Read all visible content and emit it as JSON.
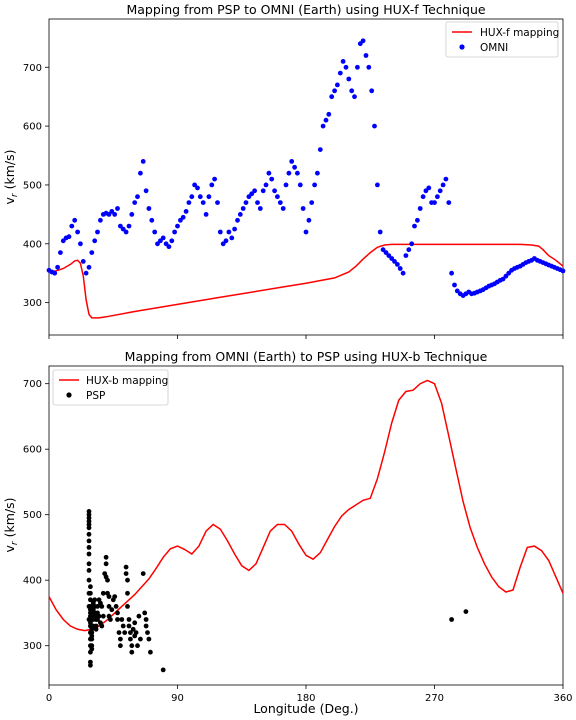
{
  "chart_data": [
    {
      "type": "scatter",
      "title": "Mapping from PSP to OMNI (Earth) using HUX-f Technique",
      "xlabel": "",
      "ylabel": "v_r (km/s)",
      "xlim": [
        0,
        360
      ],
      "ylim": [
        245,
        782
      ],
      "yticks": [
        300,
        400,
        500,
        600,
        700
      ],
      "xticks": [
        0,
        90,
        180,
        270,
        360
      ],
      "show_xtick_labels": false,
      "grid": false,
      "legend_position": "upper right",
      "series": [
        {
          "name": "HUX-f mapping",
          "kind": "line",
          "color": "#ff0000",
          "x": [
            0,
            5,
            10,
            15,
            18,
            20,
            22,
            24,
            26,
            28,
            30,
            35,
            40,
            60,
            80,
            100,
            120,
            140,
            160,
            180,
            200,
            210,
            215,
            220,
            225,
            230,
            235,
            240,
            245,
            250,
            270,
            300,
            320,
            330,
            338,
            343,
            346,
            350,
            355,
            360
          ],
          "y": [
            352,
            354,
            358,
            365,
            371,
            372,
            367,
            345,
            305,
            280,
            274,
            274,
            276,
            285,
            293,
            301,
            309,
            317,
            325,
            333,
            342,
            352,
            362,
            374,
            385,
            394,
            398,
            399,
            399,
            399,
            399,
            399,
            399,
            399,
            398,
            396,
            390,
            380,
            372,
            362
          ]
        },
        {
          "name": "OMNI",
          "kind": "scatter",
          "color": "#0000ff",
          "x": [
            0,
            2,
            4,
            6,
            8,
            10,
            12,
            14,
            16,
            18,
            20,
            22,
            24,
            26,
            28,
            30,
            32,
            34,
            36,
            38,
            40,
            42,
            44,
            46,
            48,
            50,
            52,
            54,
            56,
            58,
            60,
            62,
            64,
            66,
            68,
            70,
            72,
            74,
            76,
            78,
            80,
            82,
            84,
            86,
            88,
            90,
            92,
            94,
            96,
            98,
            100,
            102,
            104,
            106,
            108,
            110,
            112,
            114,
            116,
            118,
            120,
            122,
            124,
            126,
            128,
            130,
            132,
            134,
            136,
            138,
            140,
            142,
            144,
            146,
            148,
            150,
            152,
            154,
            156,
            158,
            160,
            162,
            164,
            166,
            168,
            170,
            172,
            174,
            176,
            178,
            180,
            182,
            184,
            186,
            188,
            190,
            192,
            194,
            196,
            198,
            200,
            202,
            204,
            206,
            208,
            210,
            212,
            214,
            216,
            218,
            220,
            222,
            224,
            226,
            228,
            230,
            232,
            234,
            236,
            238,
            240,
            242,
            244,
            246,
            248,
            250,
            252,
            254,
            256,
            258,
            260,
            262,
            264,
            266,
            268,
            270,
            272,
            274,
            276,
            278,
            280,
            282,
            284,
            286,
            288,
            290,
            292,
            294,
            296,
            298,
            300,
            302,
            304,
            306,
            308,
            310,
            312,
            314,
            316,
            318,
            320,
            322,
            324,
            326,
            328,
            330,
            332,
            334,
            336,
            338,
            340,
            342,
            344,
            346,
            348,
            350,
            352,
            354,
            356,
            358,
            360
          ],
          "y": [
            355,
            352,
            350,
            360,
            385,
            405,
            410,
            412,
            430,
            440,
            420,
            400,
            370,
            350,
            360,
            385,
            405,
            420,
            440,
            450,
            452,
            450,
            455,
            450,
            460,
            430,
            425,
            420,
            430,
            450,
            470,
            480,
            520,
            540,
            490,
            460,
            440,
            420,
            400,
            405,
            410,
            400,
            395,
            405,
            420,
            430,
            440,
            445,
            455,
            470,
            480,
            500,
            495,
            480,
            470,
            450,
            480,
            500,
            510,
            470,
            420,
            400,
            405,
            420,
            410,
            425,
            440,
            450,
            460,
            470,
            480,
            485,
            490,
            470,
            460,
            490,
            500,
            520,
            510,
            490,
            480,
            470,
            460,
            500,
            520,
            540,
            530,
            520,
            500,
            460,
            420,
            440,
            470,
            500,
            520,
            560,
            600,
            610,
            620,
            650,
            660,
            670,
            690,
            710,
            700,
            680,
            660,
            650,
            700,
            740,
            745,
            720,
            700,
            660,
            600,
            500,
            420,
            390,
            385,
            380,
            375,
            370,
            365,
            358,
            350,
            380,
            390,
            400,
            430,
            440,
            460,
            480,
            490,
            495,
            470,
            470,
            480,
            490,
            500,
            510,
            470,
            350,
            330,
            320,
            315,
            312,
            315,
            318,
            315,
            316,
            318,
            320,
            322,
            325,
            328,
            330,
            332,
            335,
            338,
            340,
            345,
            350,
            355,
            358,
            360,
            362,
            365,
            368,
            370,
            372,
            375,
            372,
            370,
            368,
            366,
            364,
            362,
            360,
            358,
            356,
            354
          ]
        }
      ]
    },
    {
      "type": "scatter",
      "title": "Mapping from OMNI (Earth) to PSP using HUX-b Technique",
      "xlabel": "Longitude (Deg.)",
      "ylabel": "v_r (km/s)",
      "xlim": [
        0,
        360
      ],
      "ylim": [
        240,
        727
      ],
      "yticks": [
        300,
        400,
        500,
        600,
        700
      ],
      "xticks": [
        0,
        90,
        180,
        270,
        360
      ],
      "show_xtick_labels": true,
      "grid": false,
      "legend_position": "upper left",
      "series": [
        {
          "name": "HUX-b mapping",
          "kind": "line",
          "color": "#ff0000",
          "x": [
            0,
            5,
            10,
            15,
            20,
            25,
            30,
            35,
            40,
            45,
            50,
            55,
            60,
            65,
            70,
            75,
            80,
            85,
            90,
            95,
            100,
            105,
            110,
            115,
            120,
            125,
            130,
            135,
            140,
            145,
            150,
            155,
            160,
            165,
            170,
            175,
            180,
            185,
            190,
            195,
            200,
            205,
            210,
            215,
            220,
            225,
            230,
            235,
            240,
            245,
            250,
            255,
            260,
            265,
            270,
            275,
            280,
            285,
            290,
            295,
            300,
            305,
            310,
            315,
            320,
            325,
            330,
            335,
            340,
            345,
            350,
            355,
            360
          ],
          "y": [
            375,
            355,
            340,
            330,
            325,
            323,
            325,
            330,
            338,
            348,
            358,
            368,
            378,
            390,
            402,
            418,
            435,
            448,
            452,
            447,
            440,
            452,
            475,
            485,
            478,
            460,
            440,
            422,
            415,
            425,
            450,
            475,
            485,
            485,
            475,
            455,
            438,
            432,
            442,
            462,
            482,
            498,
            508,
            515,
            522,
            525,
            555,
            595,
            640,
            675,
            688,
            690,
            700,
            705,
            700,
            670,
            620,
            570,
            520,
            480,
            450,
            425,
            405,
            390,
            382,
            385,
            420,
            450,
            452,
            445,
            430,
            405,
            380
          ]
        },
        {
          "name": "PSP",
          "kind": "scatter",
          "color": "#000000",
          "x": [
            28,
            28,
            28,
            28,
            28,
            28,
            28,
            28,
            28,
            28,
            28,
            28,
            28,
            28,
            28,
            28,
            29,
            29,
            29,
            29,
            29,
            29,
            29,
            29,
            29,
            29,
            29,
            29,
            29,
            29,
            29,
            29,
            30,
            30,
            30,
            30,
            30,
            30,
            30,
            31,
            31,
            31,
            31,
            31,
            32,
            32,
            32,
            32,
            33,
            33,
            33,
            34,
            34,
            34,
            35,
            35,
            36,
            36,
            37,
            37,
            38,
            38,
            39,
            40,
            40,
            40,
            41,
            41,
            42,
            42,
            42,
            43,
            44,
            45,
            46,
            47,
            48,
            48,
            49,
            50,
            50,
            51,
            52,
            53,
            54,
            54,
            55,
            55,
            55,
            56,
            56,
            57,
            57,
            58,
            58,
            59,
            60,
            60,
            61,
            62,
            63,
            64,
            66,
            67,
            68,
            68,
            69,
            70,
            71,
            80,
            282,
            292
          ],
          "y": [
            505,
            500,
            495,
            490,
            485,
            480,
            470,
            460,
            450,
            440,
            425,
            415,
            400,
            380,
            360,
            340,
            330,
            320,
            310,
            300,
            290,
            275,
            270,
            390,
            380,
            370,
            360,
            355,
            350,
            345,
            340,
            335,
            330,
            325,
            320,
            315,
            310,
            300,
            295,
            365,
            355,
            345,
            340,
            330,
            370,
            360,
            350,
            345,
            340,
            330,
            325,
            360,
            350,
            340,
            370,
            345,
            365,
            335,
            360,
            330,
            380,
            345,
            410,
            435,
            425,
            405,
            400,
            380,
            375,
            360,
            345,
            340,
            355,
            370,
            375,
            360,
            350,
            340,
            320,
            310,
            300,
            340,
            330,
            320,
            420,
            410,
            400,
            380,
            360,
            340,
            330,
            320,
            310,
            300,
            290,
            325,
            335,
            315,
            320,
            300,
            345,
            310,
            410,
            350,
            340,
            330,
            320,
            310,
            290,
            263,
            340,
            352
          ]
        }
      ]
    }
  ]
}
